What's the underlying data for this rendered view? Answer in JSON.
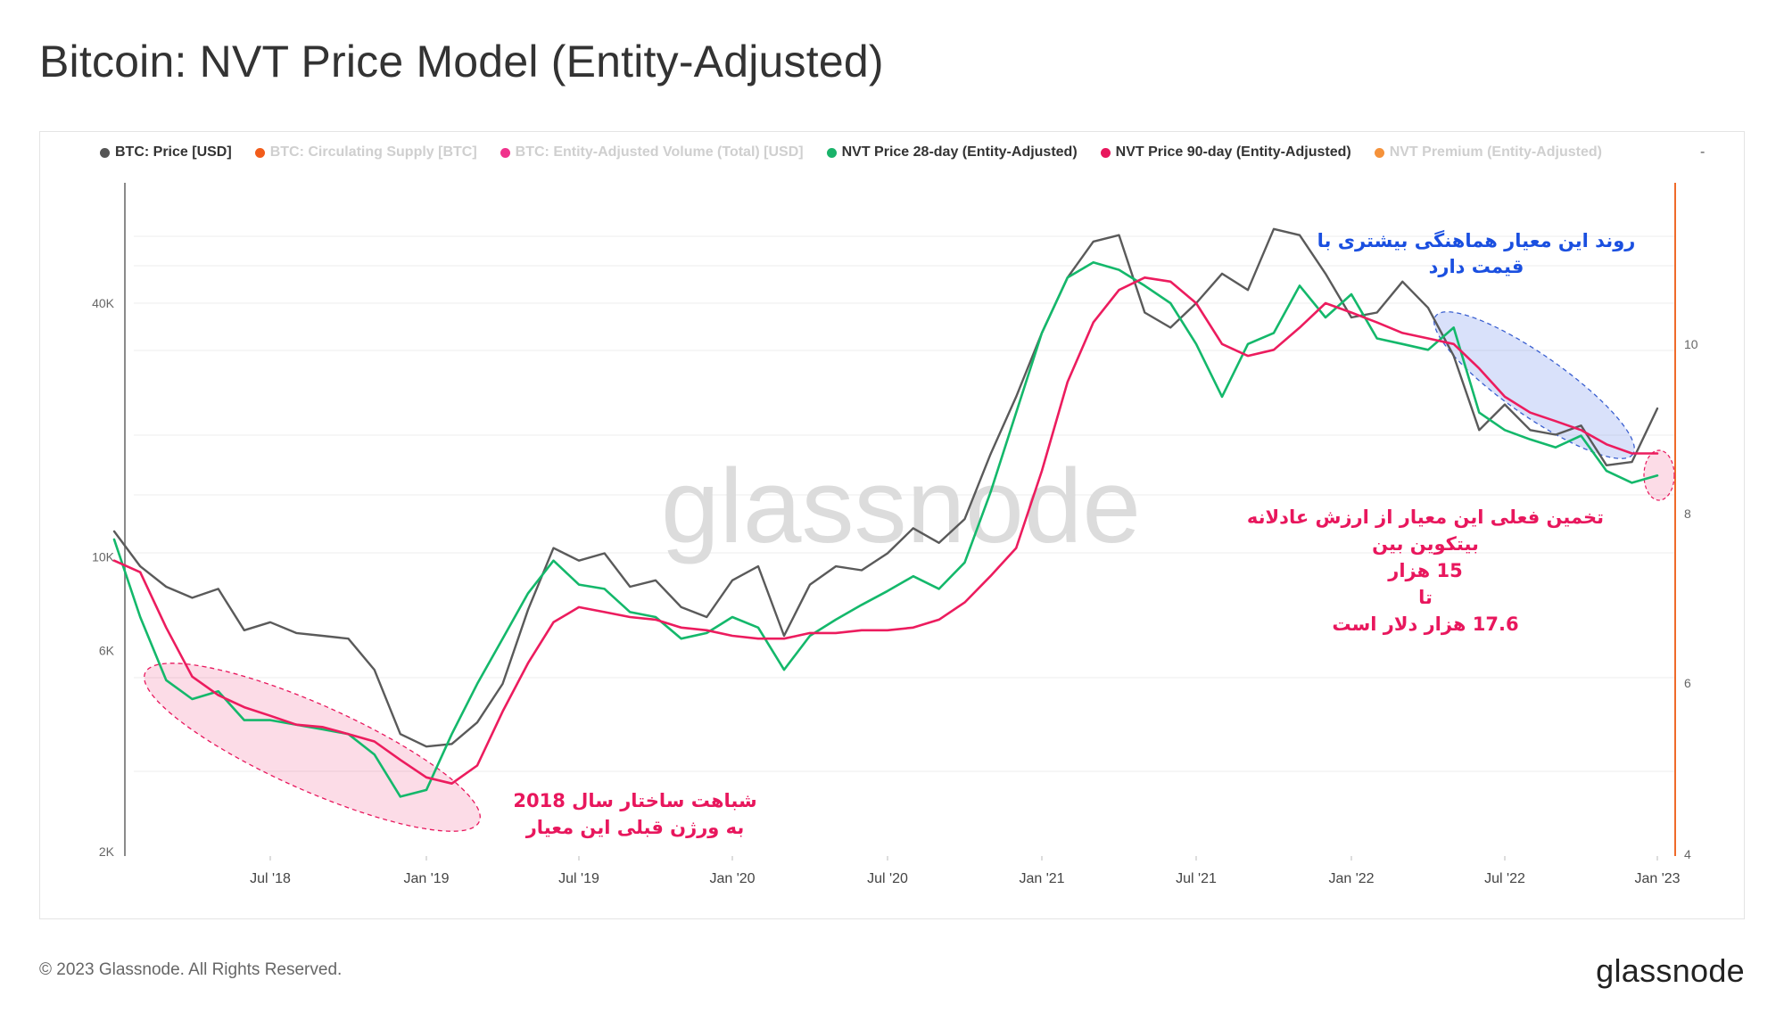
{
  "title": "Bitcoin: NVT Price Model (Entity-Adjusted)",
  "legend": [
    {
      "label": "BTC: Price [USD]",
      "color": "#555555",
      "active": true
    },
    {
      "label": "BTC: Circulating Supply [BTC]",
      "color": "#f25c1a",
      "active": false
    },
    {
      "label": "BTC: Entity-Adjusted Volume (Total) [USD]",
      "color": "#f0328c",
      "active": false
    },
    {
      "label": "NVT Price 28-day (Entity-Adjusted)",
      "color": "#1ab36a",
      "active": true
    },
    {
      "label": "NVT Price 90-day (Entity-Adjusted)",
      "color": "#e8175d",
      "active": true
    },
    {
      "label": "NVT Premium (Entity-Adjusted)",
      "color": "#f5923a",
      "active": false
    }
  ],
  "legend_more": "-",
  "footer": "© 2023 Glassnode. All Rights Reserved.",
  "brand": "glassnode",
  "watermark": "glassnode",
  "annotations": {
    "left": [
      "شباهت ساختار سال 2018",
      "به ورژن قبلی این معیار"
    ],
    "top_right": [
      "روند این معیار هماهنگی بیشتری با",
      "قیمت دارد"
    ],
    "right": [
      "تخمین فعلی این  معیار از ارزش عادلانه",
      "بیتکوین بین",
      "15 هزار",
      "تا",
      "17.6 هزار دلار است"
    ]
  },
  "colors": {
    "price": "#5a5a5a",
    "nvt28": "#14b86b",
    "nvt90": "#ec1c5e",
    "right_axis": "#ef6a2a",
    "grid": "#ececec"
  },
  "chart_data": {
    "type": "line",
    "title": "Bitcoin: NVT Price Model (Entity-Adjusted)",
    "x_range": [
      "2018-01",
      "2023-01"
    ],
    "x_ticks": [
      "Jul '18",
      "Jan '19",
      "Jul '19",
      "Jan '20",
      "Jul '20",
      "Jan '21",
      "Jul '21",
      "Jan '22",
      "Jul '22",
      "Jan '23"
    ],
    "y_scale": "log",
    "y_ticks": [
      "2K",
      "6K",
      "10K",
      "40K"
    ],
    "y_tick_values": [
      2000,
      6000,
      10000,
      40000
    ],
    "y2_ticks": [
      "4",
      "6",
      "8",
      "10"
    ],
    "grid": true,
    "legend_position": "top",
    "series": [
      {
        "name": "BTC: Price [USD]",
        "x": [
          "2018-01",
          "2018-02",
          "2018-03",
          "2018-04",
          "2018-05",
          "2018-06",
          "2018-07",
          "2018-08",
          "2018-09",
          "2018-10",
          "2018-11",
          "2018-12",
          "2019-01",
          "2019-02",
          "2019-03",
          "2019-04",
          "2019-05",
          "2019-06",
          "2019-07",
          "2019-08",
          "2019-09",
          "2019-10",
          "2019-11",
          "2019-12",
          "2020-01",
          "2020-02",
          "2020-03",
          "2020-04",
          "2020-05",
          "2020-06",
          "2020-07",
          "2020-08",
          "2020-09",
          "2020-10",
          "2020-11",
          "2020-12",
          "2021-01",
          "2021-02",
          "2021-03",
          "2021-04",
          "2021-05",
          "2021-06",
          "2021-07",
          "2021-08",
          "2021-09",
          "2021-10",
          "2021-11",
          "2021-12",
          "2022-01",
          "2022-02",
          "2022-03",
          "2022-04",
          "2022-05",
          "2022-06",
          "2022-07",
          "2022-08",
          "2022-09",
          "2022-10",
          "2022-11",
          "2022-12",
          "2023-01"
        ],
        "y": [
          11500,
          9500,
          8500,
          8000,
          8400,
          6700,
          7000,
          6600,
          6500,
          6400,
          5400,
          3800,
          3550,
          3600,
          4050,
          5000,
          7500,
          10500,
          9800,
          10200,
          8500,
          8800,
          7600,
          7200,
          8800,
          9500,
          6500,
          8600,
          9500,
          9300,
          10200,
          11700,
          10800,
          12300,
          17500,
          24000,
          34000,
          46000,
          56000,
          58000,
          38000,
          35000,
          40000,
          47000,
          43000,
          60000,
          58000,
          47000,
          37000,
          38000,
          45000,
          39000,
          30000,
          20000,
          23000,
          20000,
          19500,
          20500,
          16500,
          16800,
          22500
        ]
      },
      {
        "name": "NVT Price 28-day (Entity-Adjusted)",
        "x": [
          "2018-01",
          "2018-02",
          "2018-03",
          "2018-04",
          "2018-05",
          "2018-06",
          "2018-07",
          "2018-08",
          "2018-09",
          "2018-10",
          "2018-11",
          "2018-12",
          "2019-01",
          "2019-02",
          "2019-03",
          "2019-04",
          "2019-05",
          "2019-06",
          "2019-07",
          "2019-08",
          "2019-09",
          "2019-10",
          "2019-11",
          "2019-12",
          "2020-01",
          "2020-02",
          "2020-03",
          "2020-04",
          "2020-05",
          "2020-06",
          "2020-07",
          "2020-08",
          "2020-09",
          "2020-10",
          "2020-11",
          "2020-12",
          "2021-01",
          "2021-02",
          "2021-03",
          "2021-04",
          "2021-05",
          "2021-06",
          "2021-07",
          "2021-08",
          "2021-09",
          "2021-10",
          "2021-11",
          "2021-12",
          "2022-01",
          "2022-02",
          "2022-03",
          "2022-04",
          "2022-05",
          "2022-06",
          "2022-07",
          "2022-08",
          "2022-09",
          "2022-10",
          "2022-11",
          "2022-12",
          "2023-01"
        ],
        "y": [
          11000,
          7200,
          5100,
          4600,
          4800,
          4100,
          4100,
          4000,
          3900,
          3800,
          3400,
          2700,
          2800,
          3800,
          5000,
          6400,
          8200,
          9800,
          8600,
          8400,
          7400,
          7200,
          6400,
          6600,
          7200,
          6800,
          5400,
          6500,
          7100,
          7700,
          8300,
          9000,
          8400,
          9700,
          14200,
          22000,
          34000,
          46000,
          50000,
          48000,
          44000,
          40000,
          32000,
          24000,
          32000,
          34000,
          44000,
          37000,
          42000,
          33000,
          32000,
          31000,
          35000,
          22000,
          20000,
          19000,
          18200,
          19400,
          16000,
          15000,
          15600
        ]
      },
      {
        "name": "NVT Price 90-day (Entity-Adjusted)",
        "x": [
          "2018-01",
          "2018-02",
          "2018-03",
          "2018-04",
          "2018-05",
          "2018-06",
          "2018-07",
          "2018-08",
          "2018-09",
          "2018-10",
          "2018-11",
          "2018-12",
          "2019-01",
          "2019-02",
          "2019-03",
          "2019-04",
          "2019-05",
          "2019-06",
          "2019-07",
          "2019-08",
          "2019-09",
          "2019-10",
          "2019-11",
          "2019-12",
          "2020-01",
          "2020-02",
          "2020-03",
          "2020-04",
          "2020-05",
          "2020-06",
          "2020-07",
          "2020-08",
          "2020-09",
          "2020-10",
          "2020-11",
          "2020-12",
          "2021-01",
          "2021-02",
          "2021-03",
          "2021-04",
          "2021-05",
          "2021-06",
          "2021-07",
          "2021-08",
          "2021-09",
          "2021-10",
          "2021-11",
          "2021-12",
          "2022-01",
          "2022-02",
          "2022-03",
          "2022-04",
          "2022-05",
          "2022-06",
          "2022-07",
          "2022-08",
          "2022-09",
          "2022-10",
          "2022-11",
          "2022-12",
          "2023-01"
        ],
        "y": [
          9800,
          9200,
          6800,
          5200,
          4700,
          4400,
          4200,
          4000,
          3950,
          3800,
          3650,
          3300,
          3000,
          2900,
          3200,
          4300,
          5600,
          7000,
          7600,
          7400,
          7200,
          7100,
          6800,
          6700,
          6500,
          6400,
          6400,
          6600,
          6600,
          6700,
          6700,
          6800,
          7100,
          7800,
          9000,
          10500,
          16000,
          26000,
          36000,
          43000,
          46000,
          45000,
          40000,
          32000,
          30000,
          31000,
          35000,
          40000,
          38000,
          36000,
          34000,
          33000,
          32000,
          28000,
          24000,
          22000,
          21000,
          20000,
          18500,
          17600,
          17600
        ]
      }
    ]
  }
}
